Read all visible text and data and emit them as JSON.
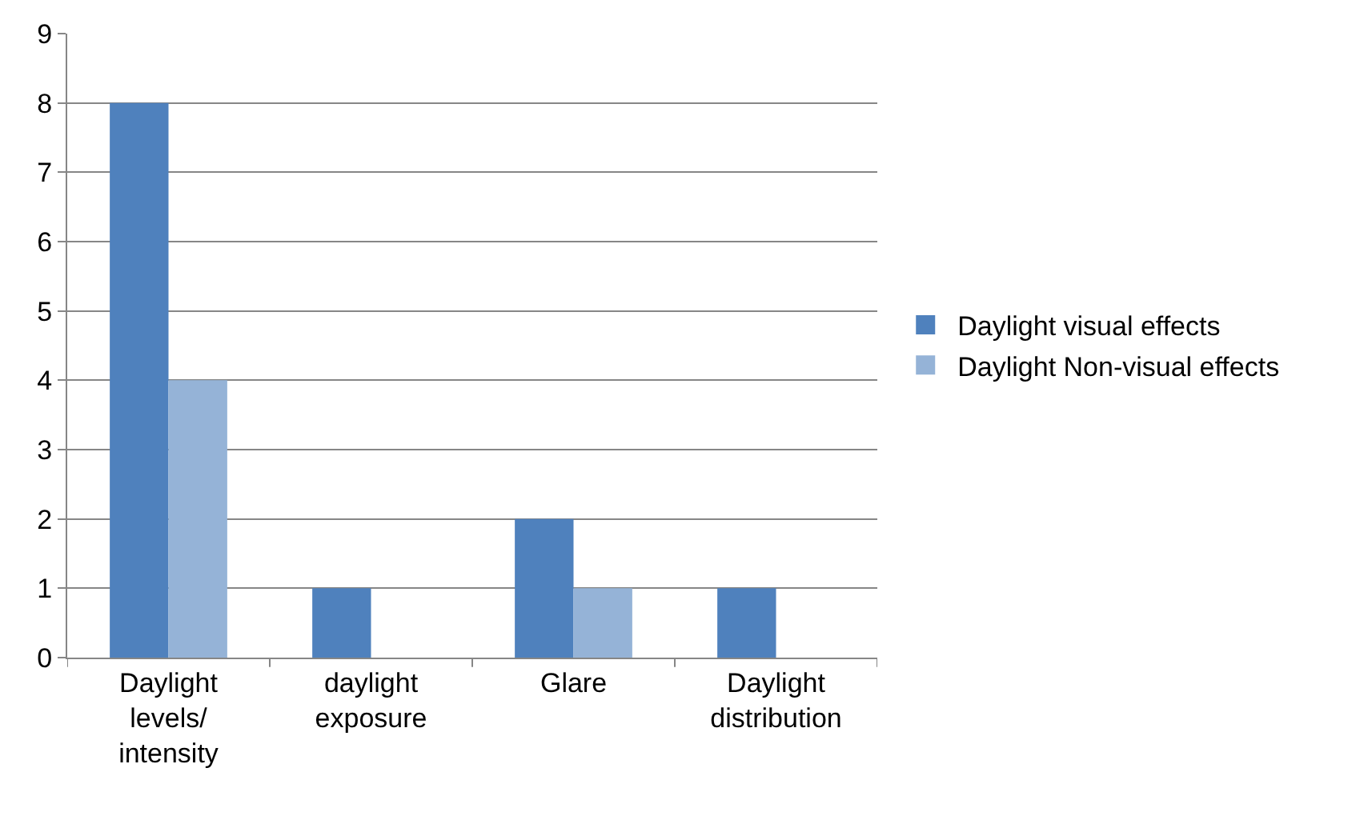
{
  "chart_data": {
    "type": "bar",
    "categories": [
      "Daylight\nlevels/\nintensity",
      "daylight\nexposure",
      "Glare",
      "Daylight\ndistribution"
    ],
    "series": [
      {
        "name": "Daylight visual effects",
        "color": "#4f81bd",
        "values": [
          8,
          1,
          2,
          1
        ]
      },
      {
        "name": "Daylight Non-visual effects",
        "color": "#95b3d7",
        "values": [
          4,
          0,
          1,
          0
        ]
      }
    ],
    "ylim": [
      0,
      9
    ],
    "yticks": [
      0,
      1,
      2,
      3,
      4,
      5,
      6,
      7,
      8,
      9
    ],
    "grid": "y",
    "legend": "right"
  }
}
